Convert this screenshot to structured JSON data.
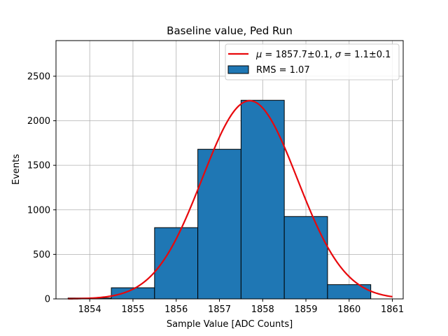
{
  "chart_data": {
    "type": "bar",
    "title": "Baseline value, Ped Run",
    "xlabel": "Sample Value [ADC Counts]",
    "ylabel": "Events",
    "xlim": [
      1853.22,
      1861.25
    ],
    "ylim": [
      0,
      2900
    ],
    "xticks": [
      1854,
      1855,
      1856,
      1857,
      1858,
      1859,
      1860,
      1861
    ],
    "yticks": [
      0,
      500,
      1000,
      1500,
      2000,
      2500
    ],
    "grid": true,
    "legend_position": "top-right",
    "series": [
      {
        "kind": "histogram",
        "legend_label": "RMS = 1.07",
        "color": "#1f77b4",
        "edge_color": "#000000",
        "bins": [
          {
            "x0": 1853.5,
            "x1": 1854.5,
            "count": 10
          },
          {
            "x0": 1854.5,
            "x1": 1855.5,
            "count": 125
          },
          {
            "x0": 1855.5,
            "x1": 1856.5,
            "count": 800
          },
          {
            "x0": 1856.5,
            "x1": 1857.5,
            "count": 1680
          },
          {
            "x0": 1857.5,
            "x1": 1858.5,
            "count": 2230
          },
          {
            "x0": 1858.5,
            "x1": 1859.5,
            "count": 925
          },
          {
            "x0": 1859.5,
            "x1": 1860.5,
            "count": 160
          }
        ]
      },
      {
        "kind": "gaussian-fit",
        "legend_label_parts": {
          "mu_symbol": "μ",
          "mu_text": " = 1857.7±0.1, ",
          "sigma_symbol": "σ",
          "sigma_text": " = 1.1±0.1"
        },
        "color": "#e8080c",
        "amplitude": 2225,
        "mean": 1857.7,
        "sigma": 1.1,
        "x_range": [
          1853.5,
          1861.0
        ]
      }
    ]
  }
}
